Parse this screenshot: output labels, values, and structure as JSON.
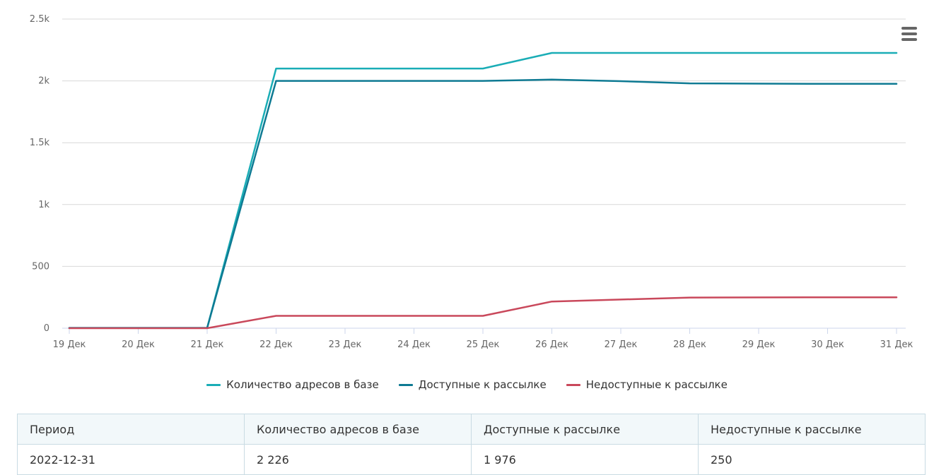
{
  "chart_data": {
    "type": "line",
    "title": "",
    "xlabel": "",
    "ylabel": "",
    "ylim": [
      0,
      2500
    ],
    "yticks": [
      {
        "value": 0,
        "label": "0"
      },
      {
        "value": 500,
        "label": "500"
      },
      {
        "value": 1000,
        "label": "1k"
      },
      {
        "value": 1500,
        "label": "1.5k"
      },
      {
        "value": 2000,
        "label": "2k"
      },
      {
        "value": 2500,
        "label": "2.5k"
      }
    ],
    "categories": [
      "19 Дек",
      "20 Дек",
      "21 Дек",
      "22 Дек",
      "23 Дек",
      "24 Дек",
      "25 Дек",
      "26 Дек",
      "27 Дек",
      "28 Дек",
      "29 Дек",
      "30 Дек",
      "31 Дек"
    ],
    "series": [
      {
        "name": "Количество адресов в базе",
        "color": "#1aadb6",
        "values": [
          2,
          2,
          2,
          2100,
          2100,
          2100,
          2100,
          2226,
          2226,
          2226,
          2226,
          2226,
          2226
        ]
      },
      {
        "name": "Доступные к рассылке",
        "color": "#0e7a93",
        "values": [
          2,
          2,
          2,
          2000,
          2000,
          2000,
          2000,
          2010,
          1998,
          1980,
          1978,
          1976,
          1976
        ]
      },
      {
        "name": "Недоступные к рассылке",
        "color": "#c9485b",
        "values": [
          0,
          0,
          0,
          100,
          100,
          100,
          100,
          216,
          232,
          248,
          249,
          250,
          250
        ]
      }
    ],
    "grid": true,
    "legend_position": "bottom"
  },
  "menu_icon": "hamburger-menu-icon",
  "table": {
    "headers": [
      "Период",
      "Количество адресов в базе",
      "Доступные к рассылке",
      "Недоступные к рассылке"
    ],
    "rows": [
      [
        "2022-12-31",
        "2 226",
        "1 976",
        "250"
      ]
    ]
  }
}
